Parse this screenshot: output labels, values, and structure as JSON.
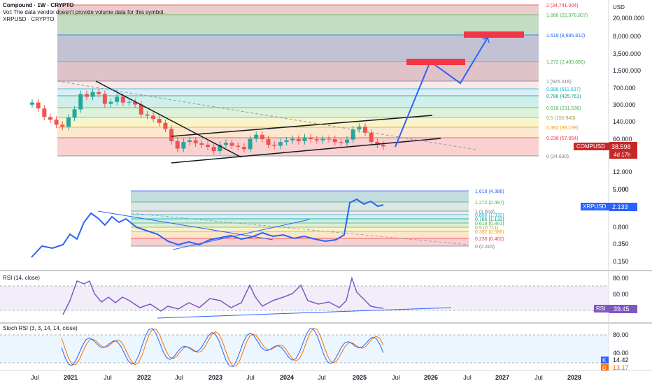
{
  "header": {
    "title": "Compound · 1W · CRYPTO",
    "volume_note": "Vol: The data vendor doesn't provide volume data for this symbol.",
    "overlay_symbol": "XRPUSD · CRYPTO"
  },
  "colors": {
    "up": "#26a69a",
    "down": "#ef5350",
    "line": "#2962ff",
    "rsi": "#7e57c2",
    "compusd_badge": "#c62828",
    "xrpusd_badge": "#2962ff",
    "rsi_badge": "#7e57c2",
    "stoch_k": "#2962ff",
    "stoch_d": "#ff6d00"
  },
  "chart_data": [
    {
      "id": "compusd",
      "type": "candlestick",
      "title": "Compound · 1W · CRYPTO",
      "scale": "log",
      "currency": "USD",
      "y_ticks": [
        "20,000.000",
        "8,000.000",
        "3,500.000",
        "1,500.000",
        "700.000",
        "300.000",
        "140.000",
        "60.000",
        "28.000",
        "12.000",
        "5.000"
      ],
      "last_price": "38.598",
      "countdown": "4d 17h",
      "series_label": "COMPUSD",
      "x_values": [
        "2020-06",
        "2020-07",
        "2020-08",
        "2020-09",
        "2020-10",
        "2020-11",
        "2020-12",
        "2021-01",
        "2021-02",
        "2021-03",
        "2021-04",
        "2021-05",
        "2021-06",
        "2021-07",
        "2021-08",
        "2021-09",
        "2021-10",
        "2021-11",
        "2021-12",
        "2022-01",
        "2022-02",
        "2022-03",
        "2022-04",
        "2022-05",
        "2022-06",
        "2022-07",
        "2022-08",
        "2022-09",
        "2022-10",
        "2022-11",
        "2022-12",
        "2023-01",
        "2023-02",
        "2023-03",
        "2023-04",
        "2023-05",
        "2023-06",
        "2023-07",
        "2023-08",
        "2023-09",
        "2023-10",
        "2023-11",
        "2023-12",
        "2024-01",
        "2024-02",
        "2024-03",
        "2024-04",
        "2024-05",
        "2024-06",
        "2024-07",
        "2024-08",
        "2024-09",
        "2024-10",
        "2024-11",
        "2024-12",
        "2025-01",
        "2025-02",
        "2025-03",
        "2025-04"
      ],
      "close_values": [
        320,
        240,
        160,
        140,
        110,
        100,
        155,
        230,
        480,
        420,
        530,
        480,
        300,
        330,
        420,
        320,
        330,
        290,
        180,
        170,
        145,
        120,
        90,
        50,
        35,
        48,
        52,
        45,
        42,
        38,
        31,
        42,
        46,
        40,
        38,
        34,
        56,
        68,
        55,
        42,
        40,
        48,
        52,
        56,
        50,
        60,
        55,
        52,
        56,
        55,
        48,
        46,
        54,
        88,
        100,
        75,
        48,
        42,
        39
      ],
      "fib_levels": [
        {
          "ratio": "0",
          "value": "24.630",
          "fill": ""
        },
        {
          "ratio": "0.236",
          "value": "57.954",
          "fill": "#f8c9c9"
        },
        {
          "ratio": "0.382",
          "value": "98.199",
          "fill": "#fbe3c4"
        },
        {
          "ratio": "0.5",
          "value": "150.940",
          "fill": "#f7f2c4"
        },
        {
          "ratio": "0.618",
          "value": "231.536",
          "fill": "#d8f0d2"
        },
        {
          "ratio": "0.786",
          "value": "425.761",
          "fill": "#c9ece6"
        },
        {
          "ratio": "0.886",
          "value": "611.837",
          "fill": "#d2ecf3"
        },
        {
          "ratio": "1",
          "value": "925.018",
          "fill": "#fde3e3"
        },
        {
          "ratio": "1.272",
          "value": "2,480.085",
          "fill": "#d9b9c0"
        },
        {
          "ratio": "1.618",
          "value": "8,695.810",
          "fill": "#b9b7cc"
        },
        {
          "ratio": "1.886",
          "value": "22,978.807",
          "fill": "#b8d7b8"
        },
        {
          "ratio": "2",
          "value": "34,741.004",
          "fill": "#e9c4c4"
        }
      ],
      "projection": {
        "description_points_price": [
          40,
          2500,
          800,
          9000
        ],
        "target_boxes": [
          "2,480.085",
          "8,695.810"
        ]
      }
    },
    {
      "id": "xrpusd",
      "type": "line",
      "title": "XRPUSD · CRYPTO",
      "scale": "log",
      "y_ticks": [
        "5.000",
        "1.750",
        "0.800",
        "0.350",
        "0.150"
      ],
      "last_price": "2.133",
      "series_label": "XRPUSD",
      "fib_levels": [
        {
          "ratio": "0",
          "value": "0.315",
          "fill": ""
        },
        {
          "ratio": "0.236",
          "value": "0.462",
          "fill": "#f8c9c9"
        },
        {
          "ratio": "0.382",
          "value": "0.586",
          "fill": "#fbe3c4"
        },
        {
          "ratio": "0.5",
          "value": "0.711",
          "fill": "#f7f2c4"
        },
        {
          "ratio": "0.618",
          "value": "0.861",
          "fill": "#d8f0d2"
        },
        {
          "ratio": "0.786",
          "value": "1.132",
          "fill": "#c9ece6"
        },
        {
          "ratio": "0.886",
          "value": "1.332",
          "fill": "#d2ecf3"
        },
        {
          "ratio": "1",
          "value": "1.604",
          "fill": "#fde3e3"
        },
        {
          "ratio": "1.272",
          "value": "2.497",
          "fill": "#d6e4e4"
        },
        {
          "ratio": "1.618",
          "value": "4.386",
          "fill": "#bcd8dc"
        }
      ]
    },
    {
      "id": "rsi",
      "type": "line",
      "title": "RSI (14, close)",
      "y_ticks": [
        "80.00",
        "60.00",
        "40.00"
      ],
      "last_value": "39.45",
      "series_label": "RSI"
    },
    {
      "id": "stoch_rsi",
      "type": "line",
      "title": "Stoch RSI (3, 3, 14, 14, close)",
      "y_ticks": [
        "80.00",
        "40.00"
      ],
      "k_label": "K",
      "k_value": "14.42",
      "d_label": "D",
      "d_value": "13.17"
    }
  ],
  "x_axis": {
    "ticks": [
      "Jul",
      "2021",
      "Jul",
      "2022",
      "Jul",
      "2023",
      "Jul",
      "2024",
      "Jul",
      "2025",
      "Jul",
      "2026",
      "Jul",
      "2027",
      "Jul",
      "2028"
    ]
  }
}
